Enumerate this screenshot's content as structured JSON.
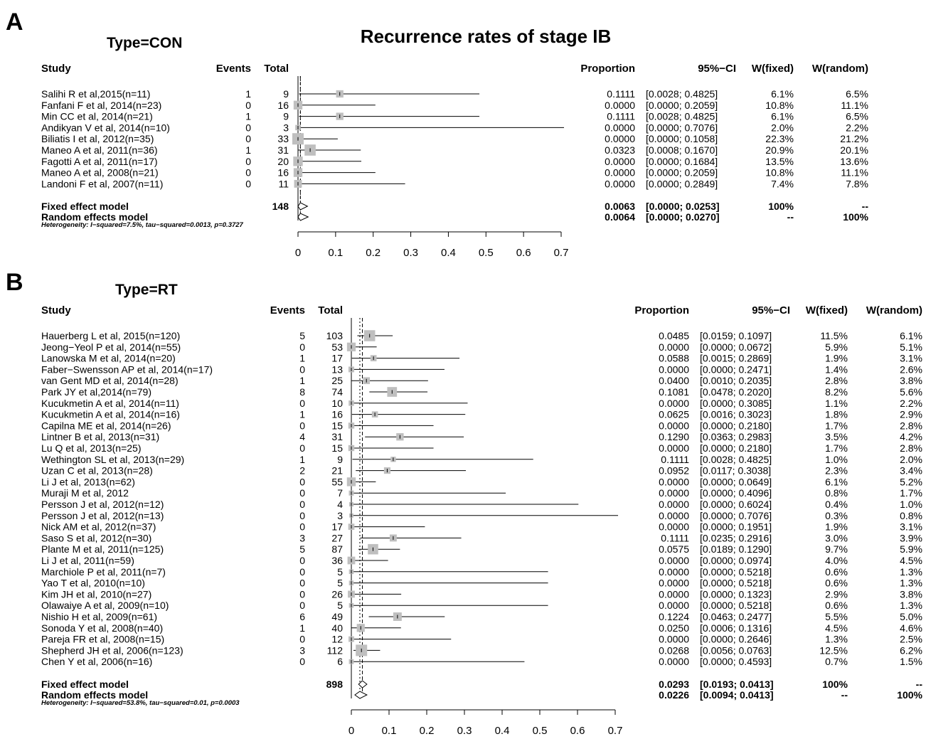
{
  "main_title": "Recurrence rates of stage IB",
  "headers": {
    "study": "Study",
    "events": "Events",
    "total": "Total",
    "proportion": "Proportion",
    "ci": "95%−CI",
    "w_fixed": "W(fixed)",
    "w_random": "W(random)"
  },
  "chart_data": [
    {
      "type": "forest",
      "panel": "A",
      "subtitle": "Type=CON",
      "xlim": [
        0,
        0.7
      ],
      "ticks": [
        "0",
        "0.1",
        "0.2",
        "0.3",
        "0.4",
        "0.5",
        "0.6",
        "0.7"
      ],
      "studies": [
        {
          "study": "Salihi R et al,2015(n=11)",
          "events": "1",
          "total": "9",
          "prop": "0.1111",
          "ci": "[0.0028; 0.4825]",
          "wf": "6.1%",
          "wr": "6.5%",
          "p": 0.1111,
          "lo": 0.0028,
          "hi": 0.4825
        },
        {
          "study": "Fanfani F et al, 2014(n=23)",
          "events": "0",
          "total": "16",
          "prop": "0.0000",
          "ci": "[0.0000; 0.2059]",
          "wf": "10.8%",
          "wr": "11.1%",
          "p": 0,
          "lo": 0,
          "hi": 0.2059
        },
        {
          "study": "Min CC et al, 2014(n=21)",
          "events": "1",
          "total": "9",
          "prop": "0.1111",
          "ci": "[0.0028; 0.4825]",
          "wf": "6.1%",
          "wr": "6.5%",
          "p": 0.1111,
          "lo": 0.0028,
          "hi": 0.4825
        },
        {
          "study": "Andikyan V et al, 2014(n=10)",
          "events": "0",
          "total": "3",
          "prop": "0.0000",
          "ci": "[0.0000; 0.7076]",
          "wf": "2.0%",
          "wr": "2.2%",
          "p": 0,
          "lo": 0,
          "hi": 0.7076
        },
        {
          "study": "Biliatis I et al, 2012(n=35)",
          "events": "0",
          "total": "33",
          "prop": "0.0000",
          "ci": "[0.0000; 0.1058]",
          "wf": "22.3%",
          "wr": "21.2%",
          "p": 0,
          "lo": 0,
          "hi": 0.1058
        },
        {
          "study": "Maneo A et al, 2011(n=36)",
          "events": "1",
          "total": "31",
          "prop": "0.0323",
          "ci": "[0.0008; 0.1670]",
          "wf": "20.9%",
          "wr": "20.1%",
          "p": 0.0323,
          "lo": 0.0008,
          "hi": 0.167
        },
        {
          "study": "Fagotti A et al, 2011(n=17)",
          "events": "0",
          "total": "20",
          "prop": "0.0000",
          "ci": "[0.0000; 0.1684]",
          "wf": "13.5%",
          "wr": "13.6%",
          "p": 0,
          "lo": 0,
          "hi": 0.1684
        },
        {
          "study": "Maneo A et al, 2008(n=21)",
          "events": "0",
          "total": "16",
          "prop": "0.0000",
          "ci": "[0.0000; 0.2059]",
          "wf": "10.8%",
          "wr": "11.1%",
          "p": 0,
          "lo": 0,
          "hi": 0.2059
        },
        {
          "study": "Landoni F et al, 2007(n=11)",
          "events": "0",
          "total": "11",
          "prop": "0.0000",
          "ci": "[0.0000; 0.2849]",
          "wf": "7.4%",
          "wr": "7.8%",
          "p": 0,
          "lo": 0,
          "hi": 0.2849
        }
      ],
      "fixed": {
        "label": "Fixed effect model",
        "total": "148",
        "prop": "0.0063",
        "ci": "[0.0000; 0.0253]",
        "wf": "100%",
        "wr": "--",
        "p": 0.0063,
        "lo": 0,
        "hi": 0.0253
      },
      "random": {
        "label": "Random effects model",
        "prop": "0.0064",
        "ci": "[0.0000; 0.0270]",
        "wf": "--",
        "wr": "100%",
        "p": 0.0064,
        "lo": 0,
        "hi": 0.027
      },
      "heterogeneity": "Heterogeneity: I−squared=7.5%, tau−squared=0.0013, p=0.3727"
    },
    {
      "type": "forest",
      "panel": "B",
      "subtitle": "Type=RT",
      "xlim": [
        0,
        0.7
      ],
      "ticks": [
        "0",
        "0.1",
        "0.2",
        "0.3",
        "0.4",
        "0.5",
        "0.6",
        "0.7"
      ],
      "studies": [
        {
          "study": "Hauerberg L et al, 2015(n=120)",
          "events": "5",
          "total": "103",
          "prop": "0.0485",
          "ci": "[0.0159; 0.1097]",
          "wf": "11.5%",
          "wr": "6.1%",
          "p": 0.0485,
          "lo": 0.0159,
          "hi": 0.1097
        },
        {
          "study": "Jeong−Yeol P et al, 2014(n=55)",
          "events": "0",
          "total": "53",
          "prop": "0.0000",
          "ci": "[0.0000; 0.0672]",
          "wf": "5.9%",
          "wr": "5.1%",
          "p": 0,
          "lo": 0,
          "hi": 0.0672
        },
        {
          "study": "Lanowska M et al, 2014(n=20)",
          "events": "1",
          "total": "17",
          "prop": "0.0588",
          "ci": "[0.0015; 0.2869]",
          "wf": "1.9%",
          "wr": "3.1%",
          "p": 0.0588,
          "lo": 0.0015,
          "hi": 0.2869
        },
        {
          "study": "Faber−Swensson AP et al, 2014(n=17)",
          "events": "0",
          "total": "13",
          "prop": "0.0000",
          "ci": "[0.0000; 0.2471]",
          "wf": "1.4%",
          "wr": "2.6%",
          "p": 0,
          "lo": 0,
          "hi": 0.2471
        },
        {
          "study": "van Gent MD et al, 2014(n=28)",
          "events": "1",
          "total": "25",
          "prop": "0.0400",
          "ci": "[0.0010; 0.2035]",
          "wf": "2.8%",
          "wr": "3.8%",
          "p": 0.04,
          "lo": 0.001,
          "hi": 0.2035
        },
        {
          "study": "Park JY et al,2014(n=79)",
          "events": "8",
          "total": "74",
          "prop": "0.1081",
          "ci": "[0.0478; 0.2020]",
          "wf": "8.2%",
          "wr": "5.6%",
          "p": 0.1081,
          "lo": 0.0478,
          "hi": 0.202
        },
        {
          "study": "Kucukmetin A et al, 2014(n=11)",
          "events": "0",
          "total": "10",
          "prop": "0.0000",
          "ci": "[0.0000; 0.3085]",
          "wf": "1.1%",
          "wr": "2.2%",
          "p": 0,
          "lo": 0,
          "hi": 0.3085
        },
        {
          "study": "Kucukmetin A et al, 2014(n=16)",
          "events": "1",
          "total": "16",
          "prop": "0.0625",
          "ci": "[0.0016; 0.3023]",
          "wf": "1.8%",
          "wr": "2.9%",
          "p": 0.0625,
          "lo": 0.0016,
          "hi": 0.3023
        },
        {
          "study": "Capilna ME et al, 2014(n=26)",
          "events": "0",
          "total": "15",
          "prop": "0.0000",
          "ci": "[0.0000; 0.2180]",
          "wf": "1.7%",
          "wr": "2.8%",
          "p": 0,
          "lo": 0,
          "hi": 0.218
        },
        {
          "study": "Lintner B et al, 2013(n=31)",
          "events": "4",
          "total": "31",
          "prop": "0.1290",
          "ci": "[0.0363; 0.2983]",
          "wf": "3.5%",
          "wr": "4.2%",
          "p": 0.129,
          "lo": 0.0363,
          "hi": 0.2983
        },
        {
          "study": "Lu Q et al, 2013(n=25)",
          "events": "0",
          "total": "15",
          "prop": "0.0000",
          "ci": "[0.0000; 0.2180]",
          "wf": "1.7%",
          "wr": "2.8%",
          "p": 0,
          "lo": 0,
          "hi": 0.218
        },
        {
          "study": "Wethington SL et al, 2013(n=29)",
          "events": "1",
          "total": "9",
          "prop": "0.1111",
          "ci": "[0.0028; 0.4825]",
          "wf": "1.0%",
          "wr": "2.0%",
          "p": 0.1111,
          "lo": 0.0028,
          "hi": 0.4825
        },
        {
          "study": "Uzan C et al, 2013(n=28)",
          "events": "2",
          "total": "21",
          "prop": "0.0952",
          "ci": "[0.0117; 0.3038]",
          "wf": "2.3%",
          "wr": "3.4%",
          "p": 0.0952,
          "lo": 0.0117,
          "hi": 0.3038
        },
        {
          "study": "Li J et al, 2013(n=62)",
          "events": "0",
          "total": "55",
          "prop": "0.0000",
          "ci": "[0.0000; 0.0649]",
          "wf": "6.1%",
          "wr": "5.2%",
          "p": 0,
          "lo": 0,
          "hi": 0.0649
        },
        {
          "study": "Muraji M et al, 2012",
          "events": "0",
          "total": "7",
          "prop": "0.0000",
          "ci": "[0.0000; 0.4096]",
          "wf": "0.8%",
          "wr": "1.7%",
          "p": 0,
          "lo": 0,
          "hi": 0.4096
        },
        {
          "study": "Persson J et al, 2012(n=12)",
          "events": "0",
          "total": "4",
          "prop": "0.0000",
          "ci": "[0.0000; 0.6024]",
          "wf": "0.4%",
          "wr": "1.0%",
          "p": 0,
          "lo": 0,
          "hi": 0.6024
        },
        {
          "study": "Persson J et al, 2012(n=13)",
          "events": "0",
          "total": "3",
          "prop": "0.0000",
          "ci": "[0.0000; 0.7076]",
          "wf": "0.3%",
          "wr": "0.8%",
          "p": 0,
          "lo": 0,
          "hi": 0.7076
        },
        {
          "study": "Nick AM et al, 2012(n=37)",
          "events": "0",
          "total": "17",
          "prop": "0.0000",
          "ci": "[0.0000; 0.1951]",
          "wf": "1.9%",
          "wr": "3.1%",
          "p": 0,
          "lo": 0,
          "hi": 0.1951
        },
        {
          "study": "Saso S et al, 2012(n=30)",
          "events": "3",
          "total": "27",
          "prop": "0.1111",
          "ci": "[0.0235; 0.2916]",
          "wf": "3.0%",
          "wr": "3.9%",
          "p": 0.1111,
          "lo": 0.0235,
          "hi": 0.2916
        },
        {
          "study": "Plante M et al, 2011(n=125)",
          "events": "5",
          "total": "87",
          "prop": "0.0575",
          "ci": "[0.0189; 0.1290]",
          "wf": "9.7%",
          "wr": "5.9%",
          "p": 0.0575,
          "lo": 0.0189,
          "hi": 0.129
        },
        {
          "study": "Li J et al, 2011(n=59)",
          "events": "0",
          "total": "36",
          "prop": "0.0000",
          "ci": "[0.0000; 0.0974]",
          "wf": "4.0%",
          "wr": "4.5%",
          "p": 0,
          "lo": 0,
          "hi": 0.0974
        },
        {
          "study": "Marchiole P et al, 2011(n=7)",
          "events": "0",
          "total": "5",
          "prop": "0.0000",
          "ci": "[0.0000; 0.5218]",
          "wf": "0.6%",
          "wr": "1.3%",
          "p": 0,
          "lo": 0,
          "hi": 0.5218
        },
        {
          "study": "Yao T et al, 2010(n=10)",
          "events": "0",
          "total": "5",
          "prop": "0.0000",
          "ci": "[0.0000; 0.5218]",
          "wf": "0.6%",
          "wr": "1.3%",
          "p": 0,
          "lo": 0,
          "hi": 0.5218
        },
        {
          "study": "Kim JH et al, 2010(n=27)",
          "events": "0",
          "total": "26",
          "prop": "0.0000",
          "ci": "[0.0000; 0.1323]",
          "wf": "2.9%",
          "wr": "3.8%",
          "p": 0,
          "lo": 0,
          "hi": 0.1323
        },
        {
          "study": "Olawaiye A et al, 2009(n=10)",
          "events": "0",
          "total": "5",
          "prop": "0.0000",
          "ci": "[0.0000; 0.5218]",
          "wf": "0.6%",
          "wr": "1.3%",
          "p": 0,
          "lo": 0,
          "hi": 0.5218
        },
        {
          "study": "Nishio H et al, 2009(n=61)",
          "events": "6",
          "total": "49",
          "prop": "0.1224",
          "ci": "[0.0463; 0.2477]",
          "wf": "5.5%",
          "wr": "5.0%",
          "p": 0.1224,
          "lo": 0.0463,
          "hi": 0.2477
        },
        {
          "study": "Sonoda Y et al, 2008(n=40)",
          "events": "1",
          "total": "40",
          "prop": "0.0250",
          "ci": "[0.0006; 0.1316]",
          "wf": "4.5%",
          "wr": "4.6%",
          "p": 0.025,
          "lo": 0.0006,
          "hi": 0.1316
        },
        {
          "study": "Pareja FR et al, 2008(n=15)",
          "events": "0",
          "total": "12",
          "prop": "0.0000",
          "ci": "[0.0000; 0.2646]",
          "wf": "1.3%",
          "wr": "2.5%",
          "p": 0,
          "lo": 0,
          "hi": 0.2646
        },
        {
          "study": "Shepherd JH et al, 2006(n=123)",
          "events": "3",
          "total": "112",
          "prop": "0.0268",
          "ci": "[0.0056; 0.0763]",
          "wf": "12.5%",
          "wr": "6.2%",
          "p": 0.0268,
          "lo": 0.0056,
          "hi": 0.0763
        },
        {
          "study": "Chen Y et al, 2006(n=16)",
          "events": "0",
          "total": "6",
          "prop": "0.0000",
          "ci": "[0.0000; 0.4593]",
          "wf": "0.7%",
          "wr": "1.5%",
          "p": 0,
          "lo": 0,
          "hi": 0.4593
        }
      ],
      "fixed": {
        "label": "Fixed effect model",
        "total": "898",
        "prop": "0.0293",
        "ci": "[0.0193; 0.0413]",
        "wf": "100%",
        "wr": "--",
        "p": 0.0293,
        "lo": 0.0193,
        "hi": 0.0413
      },
      "random": {
        "label": "Random effects model",
        "prop": "0.0226",
        "ci": "[0.0094; 0.0413]",
        "wf": "--",
        "wr": "100%",
        "p": 0.0226,
        "lo": 0.0094,
        "hi": 0.0413
      },
      "heterogeneity": "Heterogeneity: I−squared=53.8%, tau−squared=0.01, p=0.0003"
    }
  ]
}
